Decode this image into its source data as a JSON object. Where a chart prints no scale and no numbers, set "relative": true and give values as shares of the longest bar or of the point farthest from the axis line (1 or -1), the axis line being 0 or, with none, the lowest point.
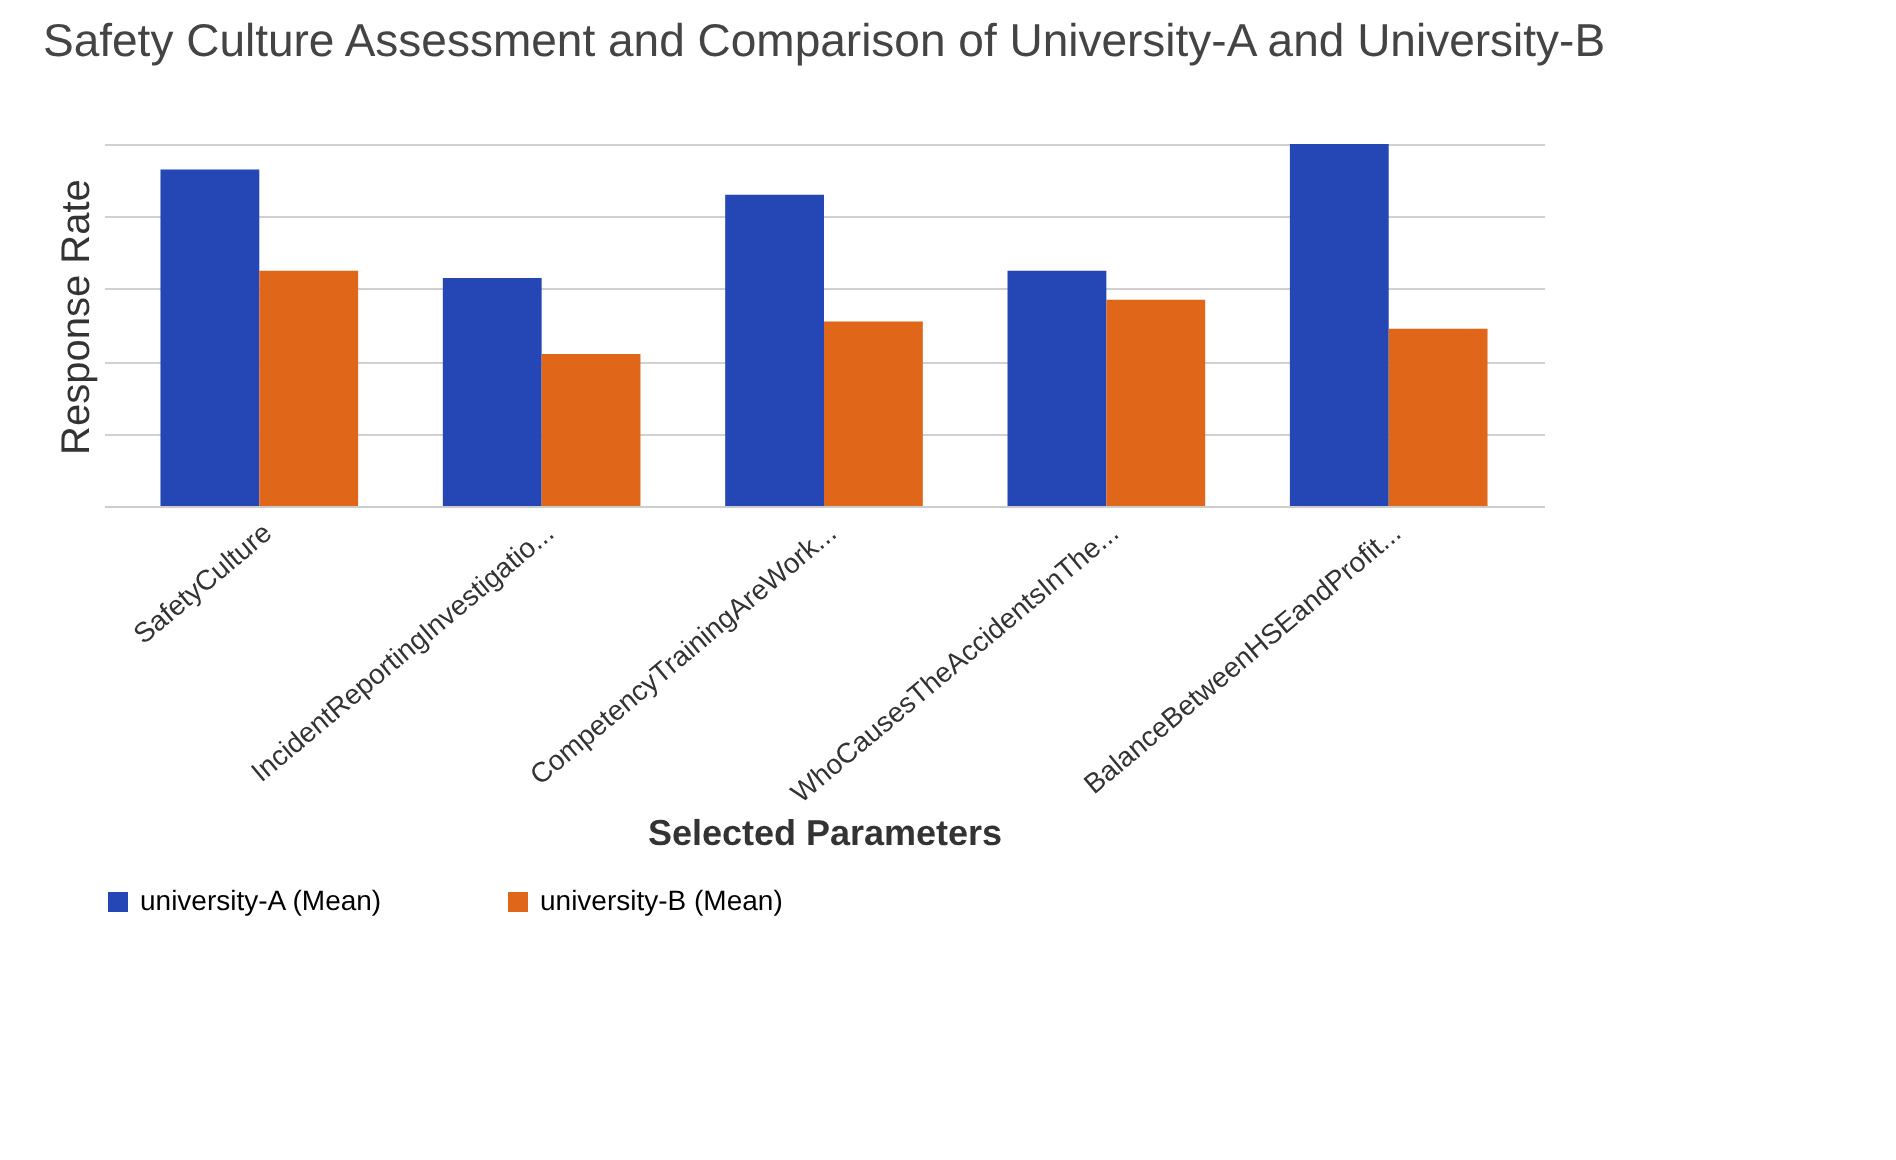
{
  "chart_data": {
    "type": "bar",
    "title": "Safety Culture Assessment and Comparison of University-A and University-B",
    "xlabel": "Selected Parameters",
    "ylabel": "Response Rate",
    "relative": true,
    "grid": "y",
    "legend": "bottom",
    "categories": [
      "SafetyCulture",
      "IncidentReportingInvestigatio...",
      "CompetencyTrainingAreWork...",
      "WhoCausesTheAccidentsInThe...",
      "BalanceBetweenHSEandProfit..."
    ],
    "series": [
      {
        "name": "university-A (Mean)",
        "color": "#2447b5",
        "values": [
          0.93,
          0.63,
          0.86,
          0.65,
          1
        ]
      },
      {
        "name": "university-B (Mean)",
        "color": "#e0661a",
        "values": [
          0.65,
          0.42,
          0.51,
          0.57,
          0.49
        ]
      }
    ]
  }
}
